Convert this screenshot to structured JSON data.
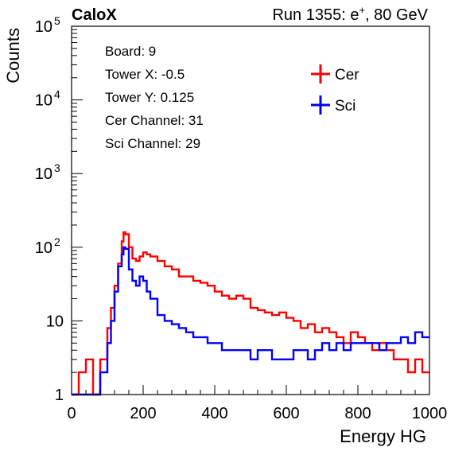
{
  "header": {
    "left": "CaloX",
    "right_prefix": "Run 1355: e",
    "right_sup": "+",
    "right_suffix": ", 80 GeV"
  },
  "info_box": {
    "lines": [
      "Board: 9",
      "Tower X: -0.5",
      "Tower Y: 0.125",
      "Cer Channel: 31",
      "Sci Channel: 29"
    ]
  },
  "chart_data": {
    "type": "line",
    "xlabel": "Energy HG",
    "ylabel": "Counts",
    "xlim": [
      0,
      1000
    ],
    "ylim": [
      1,
      100000
    ],
    "yscale": "log",
    "grid": false,
    "legend_position": "top-right",
    "x_ticks": [
      0,
      200,
      400,
      600,
      800,
      1000
    ],
    "y_ticks": [
      {
        "value": 1,
        "label": "1"
      },
      {
        "value": 10,
        "label": "10"
      },
      {
        "value": 100,
        "label": "10",
        "sup": "2"
      },
      {
        "value": 1000,
        "label": "10",
        "sup": "3"
      },
      {
        "value": 10000,
        "label": "10",
        "sup": "4"
      },
      {
        "value": 100000,
        "label": "10",
        "sup": "5"
      }
    ],
    "x": [
      0,
      20,
      40,
      60,
      80,
      100,
      110,
      120,
      130,
      140,
      145,
      150,
      160,
      170,
      180,
      190,
      200,
      210,
      220,
      240,
      260,
      280,
      300,
      320,
      340,
      360,
      380,
      400,
      420,
      440,
      460,
      480,
      500,
      520,
      540,
      560,
      580,
      600,
      620,
      640,
      660,
      680,
      700,
      720,
      740,
      760,
      780,
      800,
      820,
      840,
      860,
      880,
      900,
      920,
      940,
      960,
      980,
      1000
    ],
    "series": [
      {
        "name": "Cer",
        "color": "#ff0000",
        "values": [
          1,
          2,
          3,
          1,
          3,
          8,
          15,
          30,
          60,
          120,
          160,
          150,
          100,
          70,
          65,
          75,
          85,
          80,
          75,
          65,
          55,
          50,
          40,
          40,
          35,
          33,
          30,
          25,
          22,
          20,
          22,
          20,
          15,
          14,
          13,
          12,
          13,
          11,
          10,
          8,
          9,
          7,
          8,
          7,
          6,
          5,
          7,
          6,
          5,
          4,
          5,
          4,
          3,
          3,
          2,
          3,
          2,
          3
        ]
      },
      {
        "name": "Sci",
        "color": "#0000ff",
        "values": [
          1,
          1,
          1,
          1,
          2,
          5,
          10,
          25,
          55,
          80,
          100,
          95,
          50,
          35,
          30,
          40,
          35,
          25,
          20,
          12,
          10,
          9,
          8,
          7,
          6,
          6,
          5,
          5,
          4,
          4,
          4,
          4,
          3,
          4,
          4,
          3,
          3,
          3,
          4,
          4,
          3,
          4,
          5,
          4,
          5,
          4,
          5,
          5,
          5,
          5,
          4,
          5,
          5,
          6,
          5,
          7,
          6,
          7
        ]
      }
    ]
  }
}
